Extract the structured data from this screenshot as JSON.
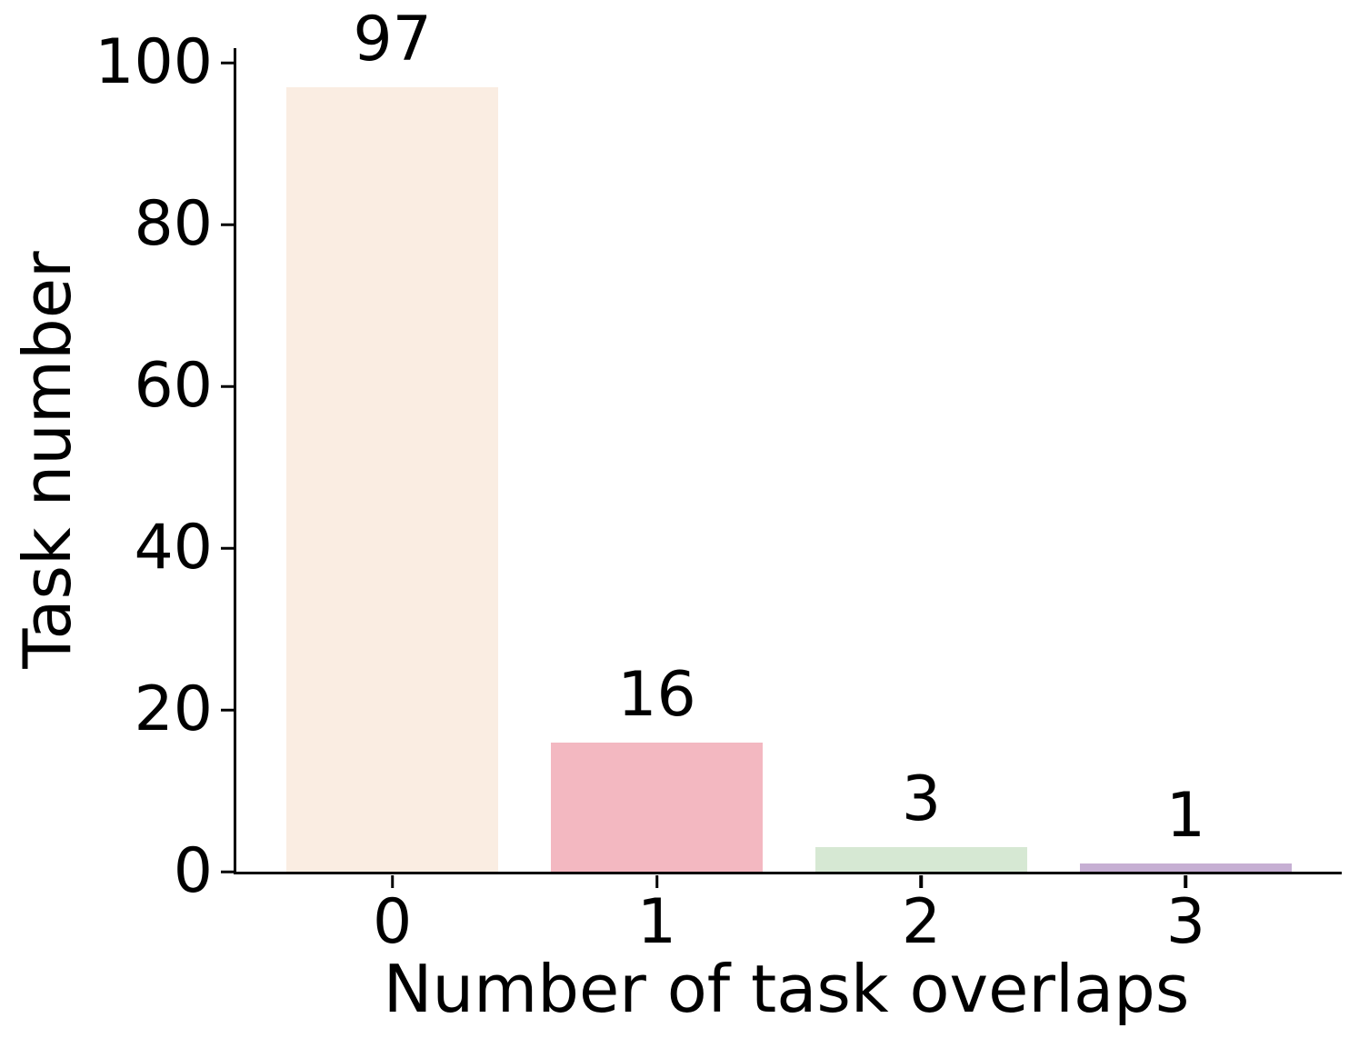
{
  "figure": {
    "background_color": "#ffffff",
    "text_color": "#000000",
    "axis_color": "#000000"
  },
  "chart_data": {
    "type": "bar",
    "title": "",
    "xlabel": "Number of task overlaps",
    "ylabel": "Task number",
    "categories": [
      "0",
      "1",
      "2",
      "3"
    ],
    "values": [
      97,
      16,
      3,
      1
    ],
    "bar_value_labels": [
      "97",
      "16",
      "3",
      "1"
    ],
    "bar_colors": [
      "#faede2",
      "#f3b8c1",
      "#d6e8d3",
      "#c6afd3"
    ],
    "yticks": [
      0,
      20,
      40,
      60,
      80,
      100
    ],
    "ytick_labels": [
      "0",
      "20",
      "40",
      "60",
      "80",
      "100"
    ],
    "ylim": [
      0,
      101.85
    ],
    "xlim": [
      -0.59,
      3.59
    ],
    "bar_width": 0.8,
    "grid": false,
    "legend_position": "none",
    "spines": [
      "left",
      "bottom"
    ]
  }
}
